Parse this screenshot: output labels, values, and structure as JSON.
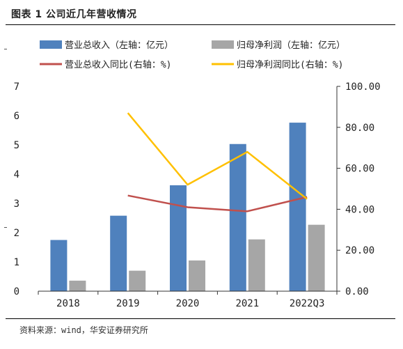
{
  "header": {
    "title": "图表 1 公司近几年营收情况"
  },
  "footer": {
    "source": "资料来源：wind，华安证券研究所"
  },
  "colors": {
    "revenue_bar": "#4F81BD",
    "profit_bar": "#A6A6A6",
    "revenue_yoy_line": "#C0504D",
    "profit_yoy_line": "#FFC000",
    "axis": "#333333",
    "rule": "#000000"
  },
  "chart_data": {
    "type": "bar",
    "combo": "bar-line-dual-axis",
    "categories": [
      "2018",
      "2019",
      "2020",
      "2021",
      "2022Q3"
    ],
    "series": [
      {
        "name": "营业总收入（左轴：亿元）",
        "kind": "bar",
        "axis": "left",
        "color": "#4F81BD",
        "values": [
          1.75,
          2.58,
          3.62,
          5.03,
          5.76
        ]
      },
      {
        "name": "归母净利润（左轴：亿元）",
        "kind": "bar",
        "axis": "left",
        "color": "#A6A6A6",
        "values": [
          0.36,
          0.7,
          1.05,
          1.77,
          2.27
        ]
      },
      {
        "name": "营业总收入同比(右轴：%)",
        "kind": "line",
        "axis": "right",
        "color": "#C0504D",
        "values": [
          null,
          46.7,
          41.0,
          39.0,
          46.0
        ]
      },
      {
        "name": "归母净利润同比(右轴：%)",
        "kind": "line",
        "axis": "right",
        "color": "#FFC000",
        "values": [
          null,
          87.0,
          52.0,
          68.0,
          45.0
        ]
      }
    ],
    "left_axis": {
      "ylim": [
        0,
        7
      ],
      "ticks": [
        "0",
        "1",
        "2",
        "3",
        "4",
        "5",
        "6",
        "7"
      ]
    },
    "right_axis": {
      "ylim": [
        0,
        100
      ],
      "ticks": [
        "0.00",
        "20.00",
        "40.00",
        "60.00",
        "80.00",
        "100.00"
      ]
    },
    "legend_position": "top",
    "grid": false
  }
}
